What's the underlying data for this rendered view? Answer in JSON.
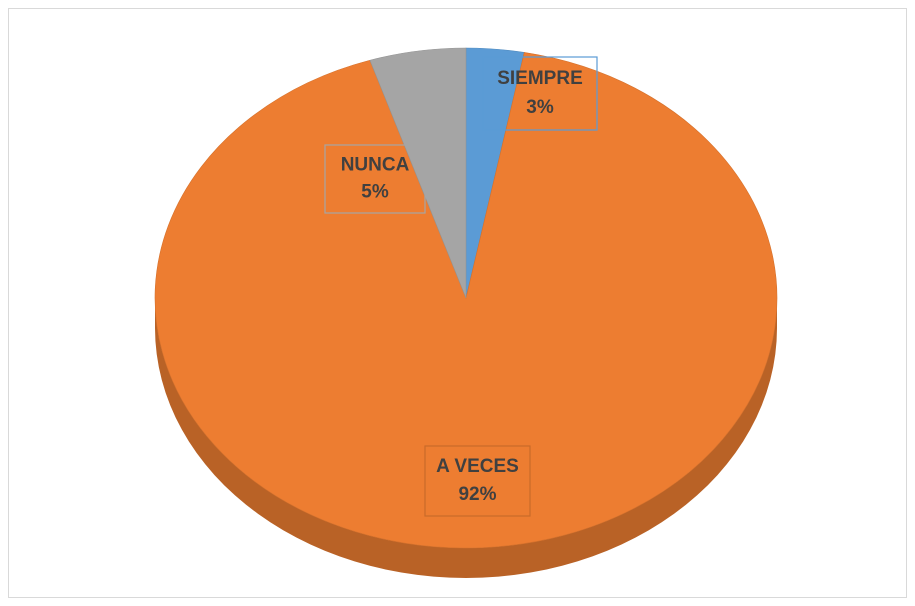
{
  "chart_data": {
    "type": "pie",
    "categories": [
      "SIEMPRE",
      "A VECES",
      "NUNCA"
    ],
    "values": [
      3,
      92,
      5
    ],
    "value_labels": [
      "3%",
      "92%",
      "5%"
    ],
    "colors": [
      "#5b9bd5",
      "#ed7d31",
      "#a5a5a5"
    ]
  }
}
